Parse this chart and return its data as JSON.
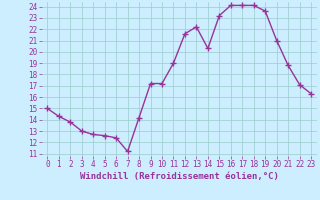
{
  "x": [
    0,
    1,
    2,
    3,
    4,
    5,
    6,
    7,
    8,
    9,
    10,
    11,
    12,
    13,
    14,
    15,
    16,
    17,
    18,
    19,
    20,
    21,
    22,
    23
  ],
  "y": [
    15.0,
    14.3,
    13.8,
    13.0,
    12.7,
    12.6,
    12.4,
    11.2,
    14.2,
    17.2,
    17.2,
    19.0,
    21.6,
    22.2,
    20.3,
    23.2,
    24.1,
    24.1,
    24.1,
    23.6,
    21.0,
    18.8,
    17.1,
    16.3
  ],
  "color": "#993399",
  "bg_color": "#cceeff",
  "grid_color": "#99cccc",
  "xlabel": "Windchill (Refroidissement éolien,°C)",
  "ylim": [
    11,
    24
  ],
  "xlim": [
    -0.5,
    23.5
  ],
  "yticks": [
    11,
    12,
    13,
    14,
    15,
    16,
    17,
    18,
    19,
    20,
    21,
    22,
    23,
    24
  ],
  "xticks": [
    0,
    1,
    2,
    3,
    4,
    5,
    6,
    7,
    8,
    9,
    10,
    11,
    12,
    13,
    14,
    15,
    16,
    17,
    18,
    19,
    20,
    21,
    22,
    23
  ],
  "marker": "+",
  "linewidth": 1.0,
  "markersize": 4,
  "label_fontsize": 6.5,
  "tick_fontsize": 5.5
}
